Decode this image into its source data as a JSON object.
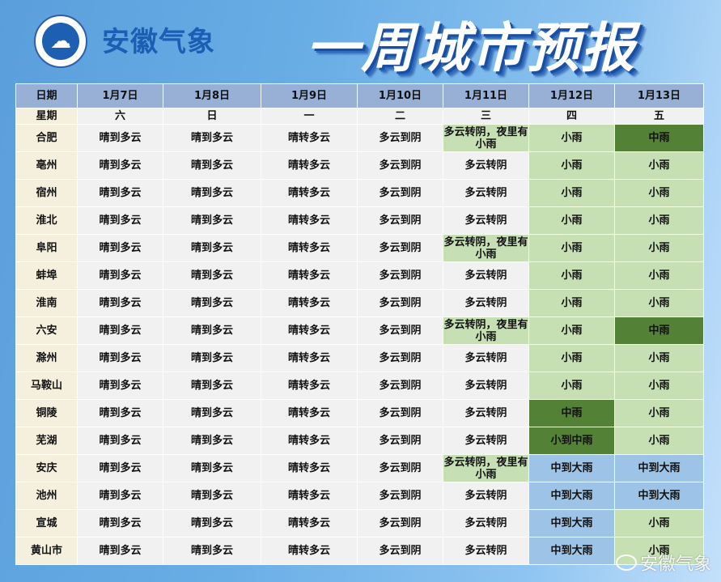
{
  "header": {
    "logo_glyph": "☁",
    "brand": "安徽气象",
    "title": "一周城市预报"
  },
  "colors": {
    "date_header": "#98b0d6",
    "city_column": "#f5efde",
    "default_cell": "#f1f1f1",
    "light_rain": "#c6e0b4",
    "moderate_rain": "#538135",
    "heavy_rain": "#9dc3e6"
  },
  "table": {
    "date_label": "日期",
    "dates": [
      "1月7日",
      "1月8日",
      "1月9日",
      "1月10日",
      "1月11日",
      "1月12日",
      "1月13日"
    ],
    "week_label": "星期",
    "weekdays": [
      "六",
      "日",
      "一",
      "二",
      "三",
      "四",
      "五"
    ],
    "rows": [
      {
        "city": "合肥",
        "cells": [
          "晴到多云",
          "晴到多云",
          "晴转多云",
          "多云到阴",
          "多云转阴，夜里有小雨",
          "小雨",
          "中雨"
        ],
        "styles": [
          "",
          "",
          "",
          "",
          "light-green",
          "light-green",
          "dark-green"
        ]
      },
      {
        "city": "亳州",
        "cells": [
          "晴到多云",
          "晴到多云",
          "晴转多云",
          "多云到阴",
          "多云转阴",
          "小雨",
          "小雨"
        ],
        "styles": [
          "",
          "",
          "",
          "",
          "",
          "light-green",
          "light-green"
        ]
      },
      {
        "city": "宿州",
        "cells": [
          "晴到多云",
          "晴到多云",
          "晴转多云",
          "多云到阴",
          "多云转阴",
          "小雨",
          "小雨"
        ],
        "styles": [
          "",
          "",
          "",
          "",
          "",
          "light-green",
          "light-green"
        ]
      },
      {
        "city": "淮北",
        "cells": [
          "晴到多云",
          "晴到多云",
          "晴转多云",
          "多云到阴",
          "多云转阴",
          "小雨",
          "小雨"
        ],
        "styles": [
          "",
          "",
          "",
          "",
          "",
          "light-green",
          "light-green"
        ]
      },
      {
        "city": "阜阳",
        "cells": [
          "晴到多云",
          "晴到多云",
          "晴转多云",
          "多云到阴",
          "多云转阴，夜里有小雨",
          "小雨",
          "小雨"
        ],
        "styles": [
          "",
          "",
          "",
          "",
          "light-green",
          "light-green",
          "light-green"
        ]
      },
      {
        "city": "蚌埠",
        "cells": [
          "晴到多云",
          "晴到多云",
          "晴转多云",
          "多云到阴",
          "多云转阴",
          "小雨",
          "小雨"
        ],
        "styles": [
          "",
          "",
          "",
          "",
          "",
          "light-green",
          "light-green"
        ]
      },
      {
        "city": "淮南",
        "cells": [
          "晴到多云",
          "晴到多云",
          "晴转多云",
          "多云到阴",
          "多云转阴",
          "小雨",
          "小雨"
        ],
        "styles": [
          "",
          "",
          "",
          "",
          "",
          "light-green",
          "light-green"
        ]
      },
      {
        "city": "六安",
        "cells": [
          "晴到多云",
          "晴到多云",
          "晴转多云",
          "多云到阴",
          "多云转阴，夜里有小雨",
          "小雨",
          "中雨"
        ],
        "styles": [
          "",
          "",
          "",
          "",
          "light-green",
          "light-green",
          "dark-green"
        ]
      },
      {
        "city": "滁州",
        "cells": [
          "晴到多云",
          "晴到多云",
          "晴转多云",
          "多云到阴",
          "多云转阴",
          "小雨",
          "小雨"
        ],
        "styles": [
          "",
          "",
          "",
          "",
          "",
          "light-green",
          "light-green"
        ]
      },
      {
        "city": "马鞍山",
        "cells": [
          "晴到多云",
          "晴到多云",
          "晴转多云",
          "多云到阴",
          "多云转阴",
          "小雨",
          "小雨"
        ],
        "styles": [
          "",
          "",
          "",
          "",
          "",
          "light-green",
          "light-green"
        ]
      },
      {
        "city": "铜陵",
        "cells": [
          "晴到多云",
          "晴到多云",
          "晴转多云",
          "多云到阴",
          "多云转阴",
          "中雨",
          "小雨"
        ],
        "styles": [
          "",
          "",
          "",
          "",
          "",
          "dark-green",
          "light-green"
        ]
      },
      {
        "city": "芜湖",
        "cells": [
          "晴到多云",
          "晴到多云",
          "晴转多云",
          "多云到阴",
          "多云转阴",
          "小到中雨",
          "小雨"
        ],
        "styles": [
          "",
          "",
          "",
          "",
          "",
          "dark-green",
          "light-green"
        ]
      },
      {
        "city": "安庆",
        "cells": [
          "晴到多云",
          "晴到多云",
          "晴转多云",
          "多云到阴",
          "多云转阴，夜里有小雨",
          "中到大雨",
          "中到大雨"
        ],
        "styles": [
          "",
          "",
          "",
          "",
          "light-green",
          "blue",
          "blue"
        ]
      },
      {
        "city": "池州",
        "cells": [
          "晴到多云",
          "晴到多云",
          "晴转多云",
          "多云到阴",
          "多云转阴",
          "中到大雨",
          "中到大雨"
        ],
        "styles": [
          "",
          "",
          "",
          "",
          "",
          "blue",
          "blue"
        ]
      },
      {
        "city": "宣城",
        "cells": [
          "晴到多云",
          "晴到多云",
          "晴转多云",
          "多云到阴",
          "多云转阴",
          "中到大雨",
          "小雨"
        ],
        "styles": [
          "",
          "",
          "",
          "",
          "",
          "blue",
          "light-green"
        ]
      },
      {
        "city": "黄山市",
        "cells": [
          "晴到多云",
          "晴到多云",
          "晴转多云",
          "多云到阴",
          "多云转阴",
          "中到大雨",
          "小雨"
        ],
        "styles": [
          "",
          "",
          "",
          "",
          "",
          "blue",
          "light-green"
        ]
      }
    ]
  },
  "watermark": {
    "icon": "weibo-icon",
    "text": "安徽气象"
  }
}
